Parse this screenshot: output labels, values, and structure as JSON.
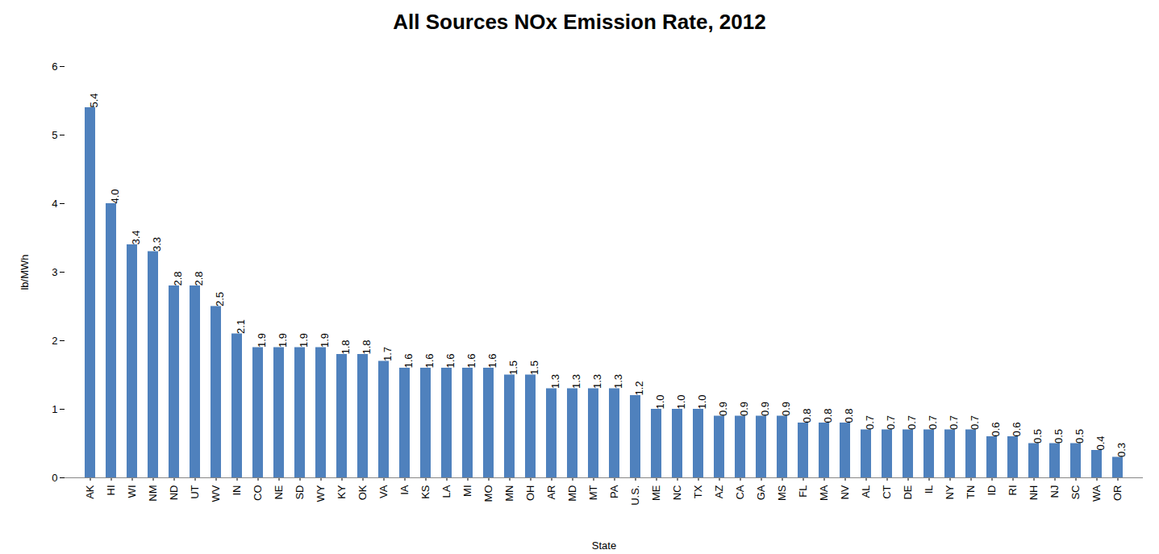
{
  "chart_data": {
    "type": "bar",
    "title": "All Sources NOx Emission Rate, 2012",
    "x_label": "State",
    "y_label": "lb/MWh",
    "categories": [
      "AK",
      "HI",
      "WI",
      "NM",
      "ND",
      "UT",
      "WV",
      "IN",
      "CO",
      "NE",
      "SD",
      "WY",
      "KY",
      "OK",
      "VA",
      "IA",
      "KS",
      "LA",
      "MI",
      "MO",
      "MN",
      "OH",
      "AR",
      "MD",
      "MT",
      "PA",
      "U.S.",
      "ME",
      "NC",
      "TX",
      "AZ",
      "CA",
      "GA",
      "MS",
      "FL",
      "MA",
      "NV",
      "AL",
      "CT",
      "DE",
      "IL",
      "NY",
      "TN",
      "ID",
      "RI",
      "NH",
      "NJ",
      "SC",
      "WA",
      "OR"
    ],
    "values": [
      5.4,
      4.0,
      3.4,
      3.3,
      2.8,
      2.8,
      2.5,
      2.1,
      1.9,
      1.9,
      1.9,
      1.9,
      1.8,
      1.8,
      1.7,
      1.6,
      1.6,
      1.6,
      1.6,
      1.6,
      1.5,
      1.5,
      1.3,
      1.3,
      1.3,
      1.3,
      1.2,
      1.0,
      1.0,
      1.0,
      0.9,
      0.9,
      0.9,
      0.9,
      0.8,
      0.8,
      0.8,
      0.7,
      0.7,
      0.7,
      0.7,
      0.7,
      0.7,
      0.6,
      0.6,
      0.5,
      0.5,
      0.5,
      0.4,
      0.3
    ],
    "value_labels": [
      "5.4",
      "4.0",
      "3.4",
      "3.3",
      "2.8",
      "2.8",
      "2.5",
      "2.1",
      "1.9",
      "1.9",
      "1.9",
      "1.9",
      "1.8",
      "1.8",
      "1.7",
      "1.6",
      "1.6",
      "1.6",
      "1.6",
      "1.6",
      "1.5",
      "1.5",
      "1.3",
      "1.3",
      "1.3",
      "1.3",
      "1.2",
      "1.0",
      "1.0",
      "1.0",
      "0.9",
      "0.9",
      "0.9",
      "0.9",
      "0.8",
      "0.8",
      "0.8",
      "0.7",
      "0.7",
      "0.7",
      "0.7",
      "0.7",
      "0.7",
      "0.6",
      "0.6",
      "0.5",
      "0.5",
      "0.5",
      "0.4",
      "0.3"
    ],
    "color": "#4f81bd",
    "ylim": [
      0,
      6
    ],
    "yticks": [
      0,
      1,
      2,
      3,
      4,
      5,
      6
    ],
    "grid": false,
    "data_labels": true
  }
}
